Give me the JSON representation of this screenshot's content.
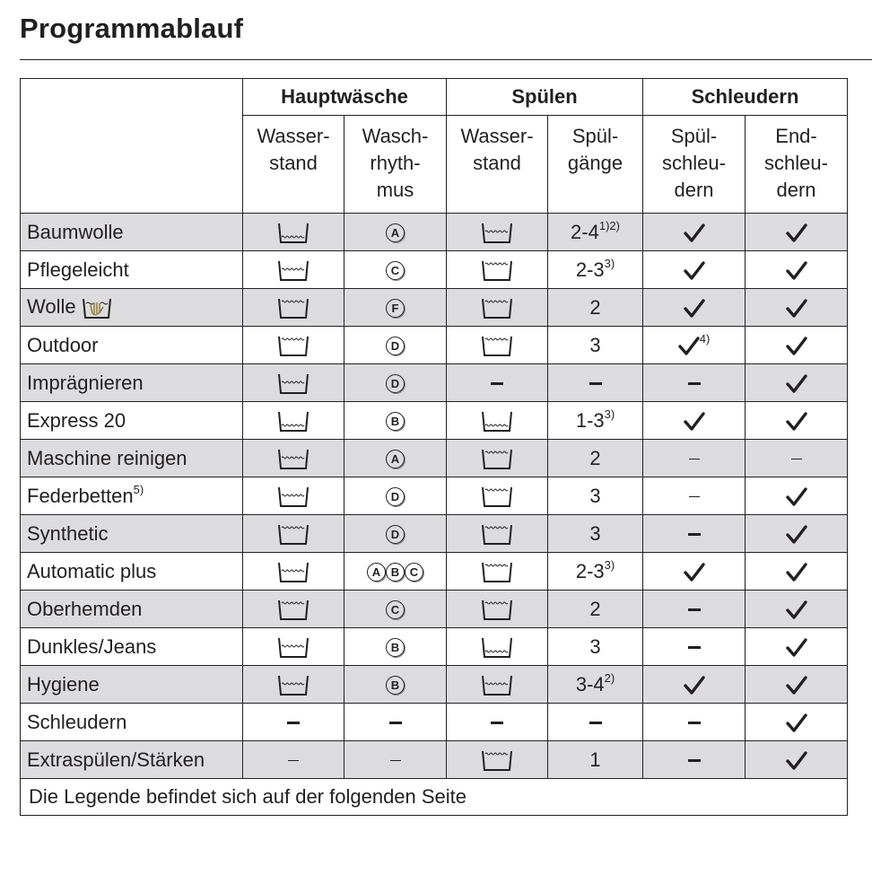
{
  "title": "Programmablauf",
  "header": {
    "groups": [
      "Hauptwäsche",
      "Spülen",
      "Schleudern"
    ],
    "columns": [
      [
        "Wasser-",
        "stand"
      ],
      [
        "Wasch-",
        "rhyth-",
        "mus"
      ],
      [
        "Wasser-",
        "stand"
      ],
      [
        "Spül-",
        "gänge"
      ],
      [
        "Spül-",
        "schleu-",
        "dern"
      ],
      [
        "End-",
        "schleu-",
        "dern"
      ]
    ]
  },
  "rows": [
    {
      "name": "Baumwolle",
      "wash_level": "tub:low",
      "rhythm": "circ:A",
      "rinse_level": "tub:mid",
      "rinses": "2-4",
      "rinses_sup": "1)2)",
      "spin_rinse": "check",
      "spin_final": "check"
    },
    {
      "name": "Pflegeleicht",
      "wash_level": "tub:mid",
      "rhythm": "circ:C",
      "rinse_level": "tub:high",
      "rinses": "2-3",
      "rinses_sup": "3)",
      "spin_rinse": "check",
      "spin_final": "check"
    },
    {
      "name": "Wolle",
      "name_icon": "handwash",
      "wash_level": "tub:high",
      "rhythm": "circ:F",
      "rinse_level": "tub:high",
      "rinses": "2",
      "spin_rinse": "check",
      "spin_final": "check"
    },
    {
      "name": "Outdoor",
      "wash_level": "tub:high",
      "rhythm": "circ:D",
      "rinse_level": "tub:high",
      "rinses": "3",
      "spin_rinse": "check",
      "spin_rinse_sup": "4)",
      "spin_final": "check"
    },
    {
      "name": "Imprägnieren",
      "wash_level": "tub:mid",
      "rhythm": "circ:D",
      "rinse_level": "dash",
      "rinses_dash": "dash",
      "spin_rinse": "dash",
      "spin_final": "check"
    },
    {
      "name": "Express 20",
      "wash_level": "tub:low",
      "rhythm": "circ:B",
      "rinse_level": "tub:low",
      "rinses": "1-3",
      "rinses_sup": "3)",
      "spin_rinse": "check",
      "spin_final": "check"
    },
    {
      "name": "Maschine reinigen",
      "wash_level": "tub:mid",
      "rhythm": "circ:A",
      "rinse_level": "tub:high",
      "rinses": "2",
      "spin_rinse": "dash-thin",
      "spin_final": "dash-thin"
    },
    {
      "name": "Federbetten",
      "name_sup": "5)",
      "wash_level": "tub:mid",
      "rhythm": "circ:D",
      "rinse_level": "tub:high",
      "rinses": "3",
      "spin_rinse": "dash-thin",
      "spin_final": "check"
    },
    {
      "name": "Synthetic",
      "wash_level": "tub:high",
      "rhythm": "circ:D",
      "rinse_level": "tub:high",
      "rinses": "3",
      "spin_rinse": "dash",
      "spin_final": "check"
    },
    {
      "name": "Automatic plus",
      "wash_level": "tub:mid",
      "rhythm": "circ:ABC",
      "rinse_level": "tub:high",
      "rinses": "2-3",
      "rinses_sup": "3)",
      "spin_rinse": "check",
      "spin_final": "check"
    },
    {
      "name": "Oberhemden",
      "wash_level": "tub:high",
      "rhythm": "circ:C",
      "rinse_level": "tub:high",
      "rinses": "2",
      "spin_rinse": "dash",
      "spin_final": "check"
    },
    {
      "name": "Dunkles/Jeans",
      "wash_level": "tub:mid",
      "rhythm": "circ:B",
      "rinse_level": "tub:low",
      "rinses": "3",
      "spin_rinse": "dash",
      "spin_final": "check"
    },
    {
      "name": "Hygiene",
      "wash_level": "tub:mid",
      "rhythm": "circ:B",
      "rinse_level": "tub:mid",
      "rinses": "3-4",
      "rinses_sup": "2)",
      "spin_rinse": "check",
      "spin_final": "check"
    },
    {
      "name": "Schleudern",
      "wash_level": "dash",
      "rhythm": "dash",
      "rinse_level": "dash",
      "rinses_dash": "dash",
      "spin_rinse": "dash",
      "spin_final": "check"
    },
    {
      "name": "Extraspülen/Stärken",
      "wash_level": "dash-thin",
      "rhythm": "dash-thin",
      "rinse_level": "tub:high",
      "rinses": "1",
      "spin_rinse": "dash",
      "spin_final": "check"
    }
  ],
  "legend": "Die Legende befindet sich auf der folgenden Seite"
}
